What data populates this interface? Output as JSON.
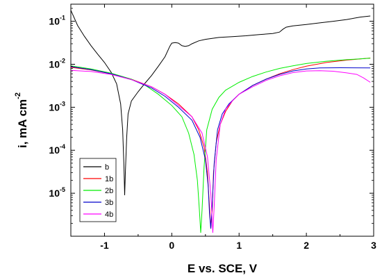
{
  "chart_data": {
    "type": "line",
    "title": "",
    "xlabel": "E vs. SCE, V",
    "ylabel_main": "i, mA cm",
    "ylabel_sup": "-2",
    "xlim": [
      -1.5,
      3
    ],
    "ylim": [
      1e-06,
      0.25
    ],
    "y_scale": "log",
    "grid": false,
    "legend_position": "lower-left",
    "x_ticks": [
      {
        "value": -1,
        "label": "-1"
      },
      {
        "value": 0,
        "label": "0"
      },
      {
        "value": 1,
        "label": "1"
      },
      {
        "value": 2,
        "label": "2"
      },
      {
        "value": 3,
        "label": "3"
      }
    ],
    "y_ticks": [
      {
        "value": 0.1,
        "base": "10",
        "exp": "-1"
      },
      {
        "value": 0.01,
        "base": "10",
        "exp": "-2"
      },
      {
        "value": 0.001,
        "base": "10",
        "exp": "-3"
      },
      {
        "value": 0.0001,
        "base": "10",
        "exp": "-4"
      },
      {
        "value": 1e-05,
        "base": "10",
        "exp": "-5"
      }
    ],
    "series": [
      {
        "name": "b",
        "color": "#000000",
        "points": [
          [
            -1.5,
            0.18
          ],
          [
            -1.4,
            0.08
          ],
          [
            -1.3,
            0.045
          ],
          [
            -1.2,
            0.027
          ],
          [
            -1.1,
            0.017
          ],
          [
            -1.0,
            0.011
          ],
          [
            -0.9,
            0.0065
          ],
          [
            -0.82,
            0.0035
          ],
          [
            -0.76,
            0.0012
          ],
          [
            -0.73,
            0.0003
          ],
          [
            -0.71,
            4e-05
          ],
          [
            -0.7,
            9e-06
          ],
          [
            -0.69,
            3e-05
          ],
          [
            -0.67,
            0.0002
          ],
          [
            -0.65,
            0.0007
          ],
          [
            -0.6,
            0.0014
          ],
          [
            -0.5,
            0.0023
          ],
          [
            -0.4,
            0.0036
          ],
          [
            -0.3,
            0.0055
          ],
          [
            -0.2,
            0.009
          ],
          [
            -0.1,
            0.015
          ],
          [
            -0.03,
            0.026
          ],
          [
            0.0,
            0.031
          ],
          [
            0.05,
            0.032
          ],
          [
            0.1,
            0.031
          ],
          [
            0.15,
            0.027
          ],
          [
            0.2,
            0.026
          ],
          [
            0.25,
            0.027
          ],
          [
            0.3,
            0.03
          ],
          [
            0.4,
            0.035
          ],
          [
            0.5,
            0.038
          ],
          [
            0.7,
            0.042
          ],
          [
            0.9,
            0.044
          ],
          [
            1.1,
            0.046
          ],
          [
            1.3,
            0.049
          ],
          [
            1.5,
            0.052
          ],
          [
            1.6,
            0.056
          ],
          [
            1.65,
            0.065
          ],
          [
            1.7,
            0.073
          ],
          [
            1.8,
            0.078
          ],
          [
            2.0,
            0.084
          ],
          [
            2.2,
            0.092
          ],
          [
            2.4,
            0.1
          ],
          [
            2.6,
            0.11
          ],
          [
            2.8,
            0.125
          ],
          [
            2.95,
            0.133
          ]
        ]
      },
      {
        "name": "1b",
        "color": "#ff0000",
        "points": [
          [
            -1.5,
            0.0085
          ],
          [
            -1.2,
            0.0074
          ],
          [
            -0.9,
            0.006
          ],
          [
            -0.6,
            0.0045
          ],
          [
            -0.3,
            0.003
          ],
          [
            -0.1,
            0.002
          ],
          [
            0.1,
            0.0012
          ],
          [
            0.3,
            0.0006
          ],
          [
            0.4,
            0.0003
          ],
          [
            0.48,
            0.00012
          ],
          [
            0.53,
            3e-05
          ],
          [
            0.56,
            5e-06
          ],
          [
            0.58,
            1.5e-06
          ],
          [
            0.6,
            4e-06
          ],
          [
            0.62,
            3e-05
          ],
          [
            0.66,
            0.00015
          ],
          [
            0.72,
            0.0004
          ],
          [
            0.8,
            0.0008
          ],
          [
            0.9,
            0.0014
          ],
          [
            1.0,
            0.002
          ],
          [
            1.2,
            0.0032
          ],
          [
            1.4,
            0.0045
          ],
          [
            1.6,
            0.006
          ],
          [
            1.8,
            0.0075
          ],
          [
            2.0,
            0.009
          ],
          [
            2.3,
            0.011
          ],
          [
            2.6,
            0.0125
          ],
          [
            2.95,
            0.014
          ]
        ]
      },
      {
        "name": "2b",
        "color": "#00ee00",
        "points": [
          [
            -1.5,
            0.0092
          ],
          [
            -1.2,
            0.0078
          ],
          [
            -0.9,
            0.0062
          ],
          [
            -0.6,
            0.0045
          ],
          [
            -0.4,
            0.0033
          ],
          [
            -0.2,
            0.002
          ],
          [
            0.0,
            0.0011
          ],
          [
            0.15,
            0.0006
          ],
          [
            0.25,
            0.00025
          ],
          [
            0.33,
            8e-05
          ],
          [
            0.38,
            2e-05
          ],
          [
            0.41,
            4e-06
          ],
          [
            0.43,
            1.2e-06
          ],
          [
            0.45,
            4e-06
          ],
          [
            0.48,
            4e-05
          ],
          [
            0.52,
            0.0003
          ],
          [
            0.6,
            0.0009
          ],
          [
            0.7,
            0.0017
          ],
          [
            0.8,
            0.0025
          ],
          [
            1.0,
            0.0038
          ],
          [
            1.2,
            0.0052
          ],
          [
            1.4,
            0.0066
          ],
          [
            1.6,
            0.008
          ],
          [
            1.8,
            0.0092
          ],
          [
            2.0,
            0.0104
          ],
          [
            2.3,
            0.0118
          ],
          [
            2.6,
            0.0128
          ],
          [
            2.95,
            0.0138
          ]
        ]
      },
      {
        "name": "3b",
        "color": "#0000cc",
        "points": [
          [
            -1.5,
            0.0088
          ],
          [
            -1.2,
            0.0075
          ],
          [
            -0.9,
            0.006
          ],
          [
            -0.6,
            0.0044
          ],
          [
            -0.3,
            0.0028
          ],
          [
            -0.1,
            0.0018
          ],
          [
            0.1,
            0.001
          ],
          [
            0.3,
            0.0005
          ],
          [
            0.42,
            0.0002
          ],
          [
            0.5,
            6e-05
          ],
          [
            0.54,
            1.5e-05
          ],
          [
            0.56,
            3.5e-06
          ],
          [
            0.58,
            1.5e-06
          ],
          [
            0.6,
            5e-06
          ],
          [
            0.63,
            5e-05
          ],
          [
            0.68,
            0.0003
          ],
          [
            0.75,
            0.0007
          ],
          [
            0.85,
            0.0012
          ],
          [
            1.0,
            0.002
          ],
          [
            1.2,
            0.0032
          ],
          [
            1.4,
            0.0045
          ],
          [
            1.6,
            0.0058
          ],
          [
            1.8,
            0.007
          ],
          [
            2.0,
            0.0078
          ],
          [
            2.2,
            0.0082
          ],
          [
            2.5,
            0.0083
          ],
          [
            2.95,
            0.0082
          ]
        ]
      },
      {
        "name": "4b",
        "color": "#ff00ff",
        "points": [
          [
            -1.5,
            0.0072
          ],
          [
            -1.2,
            0.0068
          ],
          [
            -0.9,
            0.0058
          ],
          [
            -0.6,
            0.0044
          ],
          [
            -0.3,
            0.003
          ],
          [
            -0.1,
            0.002
          ],
          [
            0.1,
            0.0011
          ],
          [
            0.3,
            0.0006
          ],
          [
            0.45,
            0.00025
          ],
          [
            0.53,
            7e-05
          ],
          [
            0.58,
            1e-05
          ],
          [
            0.6,
            2.5e-06
          ],
          [
            0.61,
            1.2e-06
          ],
          [
            0.63,
            5e-06
          ],
          [
            0.66,
            6e-05
          ],
          [
            0.72,
            0.0004
          ],
          [
            0.8,
            0.0009
          ],
          [
            0.9,
            0.0014
          ],
          [
            1.0,
            0.002
          ],
          [
            1.2,
            0.003
          ],
          [
            1.4,
            0.0042
          ],
          [
            1.6,
            0.0054
          ],
          [
            1.8,
            0.0064
          ],
          [
            2.0,
            0.007
          ],
          [
            2.2,
            0.0071
          ],
          [
            2.4,
            0.0069
          ],
          [
            2.6,
            0.0063
          ],
          [
            2.75,
            0.0058
          ],
          [
            2.85,
            0.0048
          ],
          [
            2.95,
            0.0038
          ]
        ]
      }
    ]
  }
}
